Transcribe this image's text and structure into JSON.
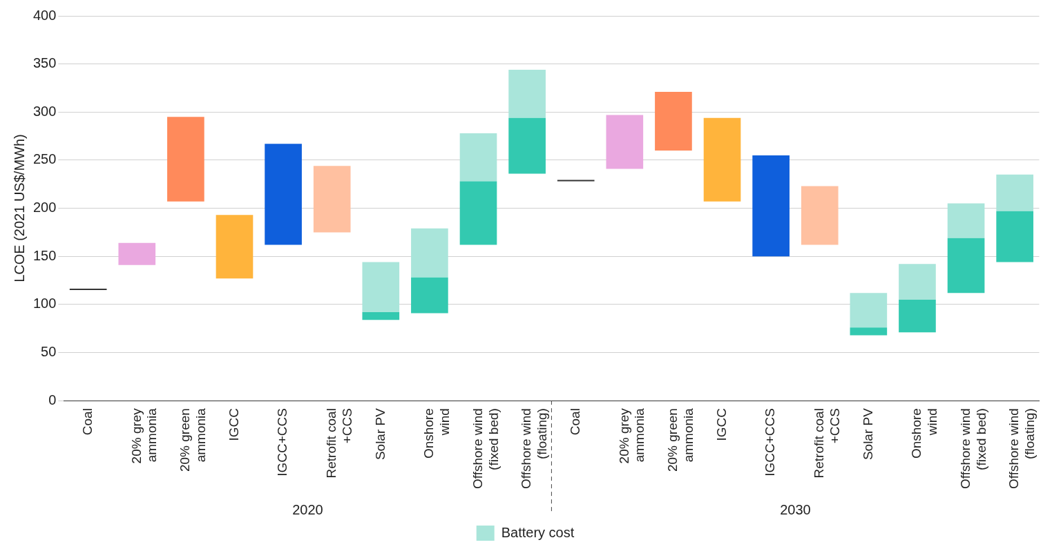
{
  "chart_data": {
    "type": "bar",
    "ylabel": "LCOE (2021 US$/MWh)",
    "categories": [
      "Coal",
      "20% grey\nammonia",
      "20% green\nammonia",
      "IGCC",
      "IGCC+CCS",
      "Retrofit coal\n+CCS",
      "Solar PV",
      "Onshore\nwind",
      "Offshore wind\n(fixed bed)",
      "Offshore wind\n(floating)",
      "Coal",
      "20% grey\nammonia",
      "20% green\nammonia",
      "IGCC",
      "IGCC+CCS",
      "Retrofit coal\n+CCS",
      "Solar PV",
      "Onshore\nwind",
      "Offshore wind\n(fixed bed)",
      "Offshore wind\n(floating)"
    ],
    "series": [
      {
        "colors": [
          "#333333",
          "#eaa8e0",
          "#ff8a5b",
          "#ffb43c",
          "#0f5fdc",
          "#ffc0a0",
          "#33c9b0",
          "#33c9b0",
          "#33c9b0",
          "#33c9b0",
          "#333333",
          "#eaa8e0",
          "#ff8a5b",
          "#ffb43c",
          "#0f5fdc",
          "#ffc0a0",
          "#33c9b0",
          "#33c9b0",
          "#33c9b0",
          "#33c9b0"
        ],
        "base": [
          115,
          141,
          207,
          127,
          162,
          175,
          84,
          91,
          162,
          236,
          228,
          241,
          260,
          207,
          150,
          162,
          68,
          71,
          112,
          144
        ],
        "values": [
          1,
          23,
          88,
          66,
          105,
          69,
          8,
          37,
          66,
          58,
          1,
          56,
          61,
          87,
          105,
          61,
          8,
          34,
          57,
          53
        ]
      },
      {
        "name": "Battery cost",
        "color": "#a9e5da",
        "base": [
          null,
          null,
          null,
          null,
          null,
          null,
          92,
          128,
          228,
          294,
          null,
          null,
          null,
          null,
          null,
          null,
          76,
          105,
          169,
          197
        ],
        "values": [
          null,
          null,
          null,
          null,
          null,
          null,
          52,
          51,
          50,
          50,
          null,
          null,
          null,
          null,
          null,
          null,
          36,
          37,
          36,
          38
        ]
      }
    ],
    "ylim": [
      0,
      400
    ],
    "yticks": [
      0,
      50,
      100,
      150,
      200,
      250,
      300,
      350,
      400
    ],
    "grid": "y",
    "legend": "bottom",
    "annotations": [
      "2020",
      "2030"
    ]
  }
}
